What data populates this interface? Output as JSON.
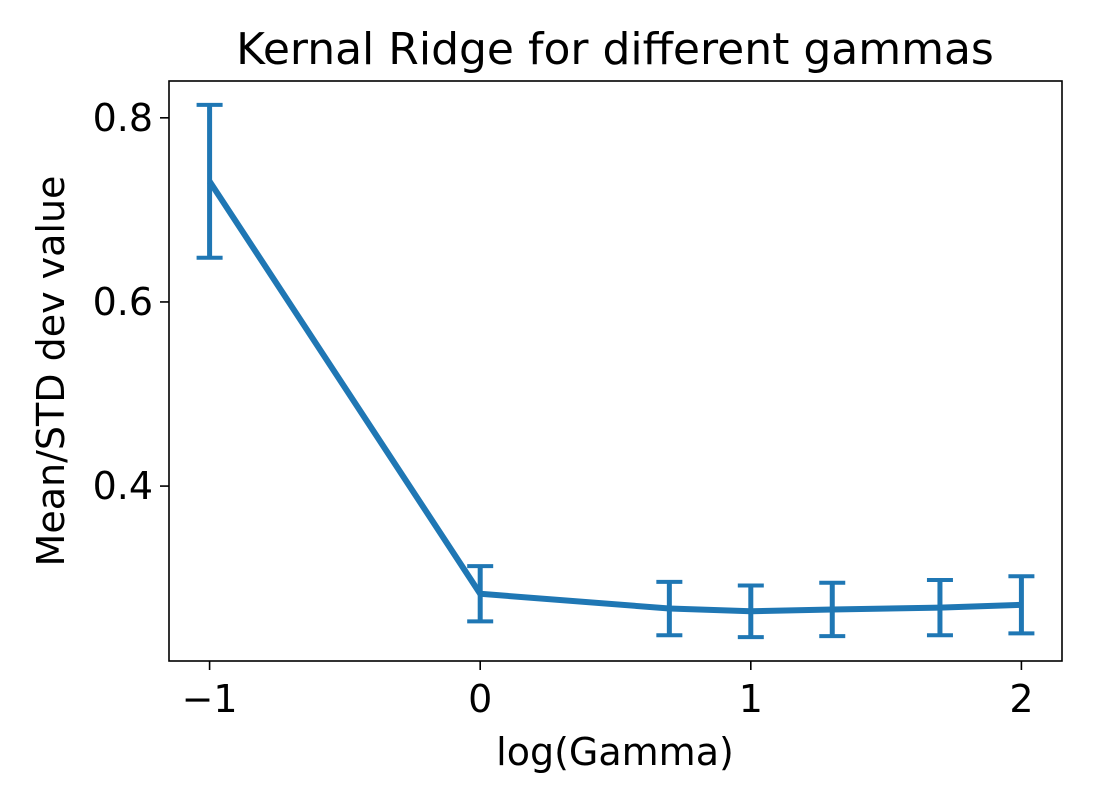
{
  "chart_data": {
    "type": "line",
    "title": "Kernal Ridge for different gammas",
    "xlabel": "log(Gamma)",
    "ylabel": "Mean/STD dev value",
    "xlim": [
      -1.15,
      2.15
    ],
    "ylim": [
      0.21,
      0.84
    ],
    "xticks": [
      -1,
      0,
      1,
      2
    ],
    "xtick_labels": [
      "−1",
      "0",
      "1",
      "2"
    ],
    "yticks": [
      0.4,
      0.6,
      0.8
    ],
    "ytick_labels": [
      "0.4",
      "0.6",
      "0.8"
    ],
    "grid": false,
    "series": [
      {
        "x": [
          -1,
          0,
          0.699,
          1,
          1.301,
          1.699,
          2
        ],
        "y": [
          0.731,
          0.283,
          0.267,
          0.264,
          0.266,
          0.268,
          0.271
        ],
        "err": [
          0.083,
          0.03,
          0.029,
          0.028,
          0.029,
          0.03,
          0.031
        ],
        "color": "#1f77b4"
      }
    ]
  }
}
